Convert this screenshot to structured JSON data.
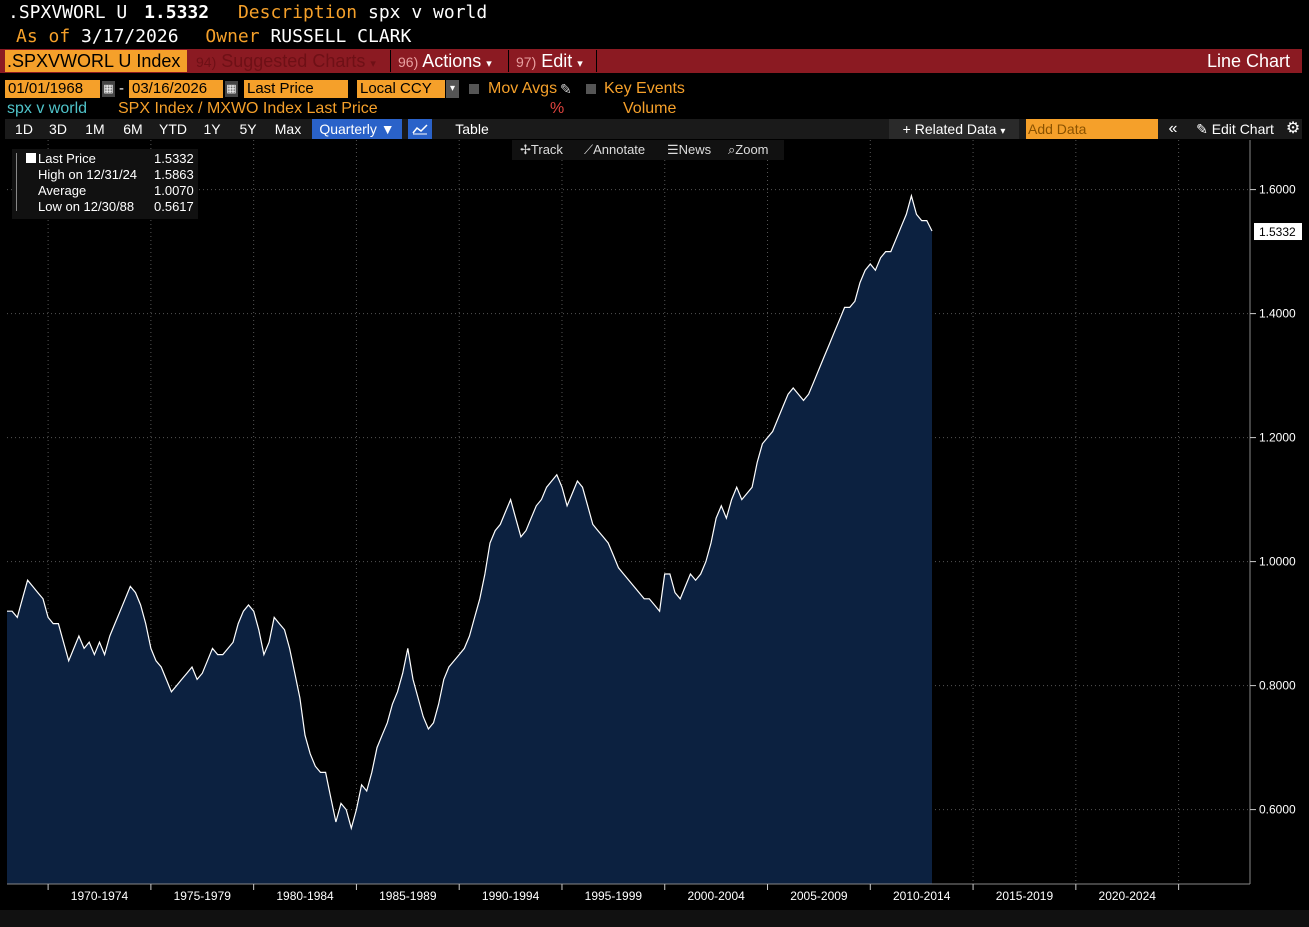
{
  "header": {
    "ticker_short": ".SPXVWORL U",
    "last_value": "1.5332",
    "description_label": "Description",
    "description_value": "spx v world",
    "asof_label": "As of",
    "asof_value": "3/17/2026",
    "owner_label": "Owner",
    "owner_value": "RUSSELL CLARK"
  },
  "menubar": {
    "ticker_field": ".SPXVWORL U Index",
    "suggested_num": "94)",
    "suggested_label": "Suggested Charts",
    "actions_num": "96)",
    "actions_label": "Actions",
    "edit_num": "97)",
    "edit_label": "Edit",
    "chart_type": "Line Chart"
  },
  "controls": {
    "start_date": "01/01/1968",
    "dash": "-",
    "end_date": "03/16/2026",
    "price_field": "Last Price",
    "currency": "Local CCY",
    "mov_avgs": "Mov Avgs",
    "key_events": "Key Events"
  },
  "series_row": {
    "name": "spx v world",
    "desc": "SPX Index / MXWO Index Last Price",
    "pct": "%",
    "volume": "Volume"
  },
  "toolbar": {
    "periods": [
      "1D",
      "3D",
      "1M",
      "6M",
      "YTD",
      "1Y",
      "5Y",
      "Max"
    ],
    "frequency": "Quarterly",
    "table": "Table",
    "related": "Related Data",
    "add_data_placeholder": "Add Data",
    "edit_chart": "Edit Chart"
  },
  "chart_tools": {
    "track": "Track",
    "annotate": "Annotate",
    "news": "News",
    "zoom": "Zoom"
  },
  "legend": {
    "rows": [
      {
        "label": "Last Price",
        "value": "1.5332"
      },
      {
        "label": "High on 12/31/24",
        "value": "1.5863"
      },
      {
        "label": "Average",
        "value": "1.0070"
      },
      {
        "label": "Low on 12/30/88",
        "value": "0.5617"
      }
    ]
  },
  "colors": {
    "accent": "#f5a02a",
    "menubar": "#8b1a22",
    "area_fill": "#0c2140",
    "line": "#ffffff",
    "series_name": "#4fc3c9"
  },
  "chart_data": {
    "type": "area",
    "frequency": "quarterly",
    "x_start": 1968.0,
    "x_step": 0.25,
    "ylim": [
      0.48,
      1.68
    ],
    "y_ticks": [
      "1.6000",
      "1.4000",
      "1.2000",
      "1.0000",
      "0.8000",
      "0.6000"
    ],
    "x_tick_labels": [
      "1970-1974",
      "1975-1979",
      "1980-1984",
      "1985-1989",
      "1990-1994",
      "1995-1999",
      "2000-2004",
      "2005-2009",
      "2010-2014",
      "2015-2019",
      "2020-2024"
    ],
    "last_value_label": "1.5332",
    "values": [
      0.92,
      0.92,
      0.91,
      0.94,
      0.97,
      0.96,
      0.95,
      0.94,
      0.91,
      0.9,
      0.9,
      0.87,
      0.84,
      0.86,
      0.88,
      0.86,
      0.87,
      0.85,
      0.87,
      0.85,
      0.88,
      0.9,
      0.92,
      0.94,
      0.96,
      0.95,
      0.93,
      0.9,
      0.86,
      0.84,
      0.83,
      0.81,
      0.79,
      0.8,
      0.81,
      0.82,
      0.83,
      0.81,
      0.82,
      0.84,
      0.86,
      0.85,
      0.85,
      0.86,
      0.87,
      0.9,
      0.92,
      0.93,
      0.92,
      0.89,
      0.85,
      0.87,
      0.91,
      0.9,
      0.89,
      0.86,
      0.82,
      0.78,
      0.72,
      0.69,
      0.67,
      0.66,
      0.66,
      0.62,
      0.58,
      0.61,
      0.6,
      0.57,
      0.6,
      0.64,
      0.63,
      0.66,
      0.7,
      0.72,
      0.74,
      0.77,
      0.79,
      0.82,
      0.86,
      0.81,
      0.78,
      0.75,
      0.73,
      0.74,
      0.77,
      0.81,
      0.83,
      0.84,
      0.85,
      0.86,
      0.88,
      0.91,
      0.94,
      0.98,
      1.03,
      1.05,
      1.06,
      1.08,
      1.1,
      1.07,
      1.04,
      1.05,
      1.07,
      1.09,
      1.1,
      1.12,
      1.13,
      1.14,
      1.12,
      1.09,
      1.11,
      1.13,
      1.12,
      1.09,
      1.06,
      1.05,
      1.04,
      1.03,
      1.01,
      0.99,
      0.98,
      0.97,
      0.96,
      0.95,
      0.94,
      0.94,
      0.93,
      0.92,
      0.98,
      0.98,
      0.95,
      0.94,
      0.96,
      0.98,
      0.97,
      0.98,
      1.0,
      1.03,
      1.07,
      1.09,
      1.07,
      1.1,
      1.12,
      1.1,
      1.11,
      1.12,
      1.16,
      1.19,
      1.2,
      1.21,
      1.23,
      1.25,
      1.27,
      1.28,
      1.27,
      1.26,
      1.27,
      1.29,
      1.31,
      1.33,
      1.35,
      1.37,
      1.39,
      1.41,
      1.41,
      1.42,
      1.45,
      1.47,
      1.48,
      1.47,
      1.49,
      1.5,
      1.5,
      1.52,
      1.54,
      1.56,
      1.59,
      1.56,
      1.55,
      1.55,
      1.5332
    ]
  }
}
